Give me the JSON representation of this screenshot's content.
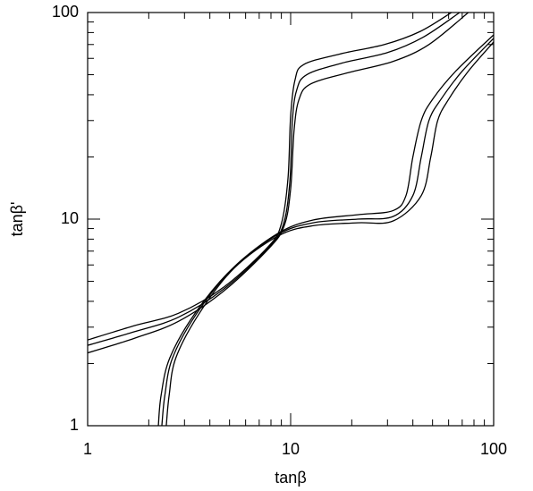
{
  "chart_data": {
    "type": "line",
    "x_label": "tanβ",
    "y_label": "tanβ'",
    "xscale": "log",
    "yscale": "log",
    "xlim": [
      1,
      100
    ],
    "ylim": [
      1,
      100
    ],
    "xticks": [
      1,
      10,
      100
    ],
    "yticks": [
      1,
      10,
      100
    ],
    "xminorticks": [
      2,
      3,
      4,
      5,
      6,
      7,
      8,
      9,
      20,
      30,
      40,
      50,
      60,
      70,
      80,
      90
    ],
    "yminorticks": [
      2,
      3,
      4,
      5,
      6,
      7,
      8,
      9,
      20,
      30,
      40,
      50,
      60,
      70,
      80,
      90
    ],
    "series": [
      {
        "color": "#000000",
        "x": [
          1,
          1.7,
          2.8,
          4.7,
          7.8,
          9,
          9.7,
          10,
          10.5,
          11.6,
          17.5,
          29,
          43.5,
          62
        ],
        "values": [
          2.6,
          3.05,
          3.5,
          4.7,
          7.4,
          9.5,
          15.7,
          31.6,
          47,
          56,
          63,
          70,
          81,
          100
        ]
      },
      {
        "color": "#000000",
        "x": [
          1,
          1.7,
          2.8,
          4.7,
          7.8,
          9.2,
          9.9,
          10.2,
          10.7,
          12,
          18,
          30,
          45,
          68
        ],
        "values": [
          2.45,
          2.85,
          3.35,
          4.6,
          7.3,
          9.4,
          15,
          30,
          42,
          50,
          57,
          64,
          76,
          100
        ]
      },
      {
        "color": "#000000",
        "x": [
          1,
          1.7,
          2.8,
          4.7,
          7.8,
          9.3,
          10,
          10.4,
          11,
          12.5,
          19,
          32,
          48,
          75
        ],
        "values": [
          2.25,
          2.65,
          3.2,
          4.5,
          7.2,
          9.3,
          14,
          27,
          38,
          45,
          51,
          58,
          70,
          100
        ]
      },
      {
        "color": "#000000",
        "x": [
          2.23,
          2.3,
          2.54,
          3.38,
          5.17,
          8.6,
          12.9,
          21.4,
          32,
          37,
          40,
          44,
          50,
          65,
          100
        ],
        "values": [
          1,
          1.4,
          2.13,
          3.5,
          5.77,
          8.5,
          9.9,
          10.5,
          11,
          13,
          20,
          30,
          38,
          52,
          78
        ]
      },
      {
        "color": "#000000",
        "x": [
          2.32,
          2.4,
          2.62,
          3.45,
          5.2,
          8.6,
          12.9,
          21.4,
          32,
          40,
          44,
          48,
          55,
          70,
          100
        ],
        "values": [
          1,
          1.4,
          2.13,
          3.5,
          5.77,
          8.4,
          9.6,
          10,
          10.3,
          13,
          20,
          30,
          38,
          52,
          75
        ]
      },
      {
        "color": "#000000",
        "x": [
          2.44,
          2.52,
          2.72,
          3.55,
          5.25,
          8.7,
          13,
          21.4,
          32,
          44,
          49,
          53,
          60,
          75,
          100
        ],
        "values": [
          1,
          1.4,
          2.13,
          3.5,
          5.77,
          8.3,
          9.3,
          9.6,
          9.8,
          13,
          20,
          30,
          38,
          52,
          72
        ]
      }
    ]
  }
}
